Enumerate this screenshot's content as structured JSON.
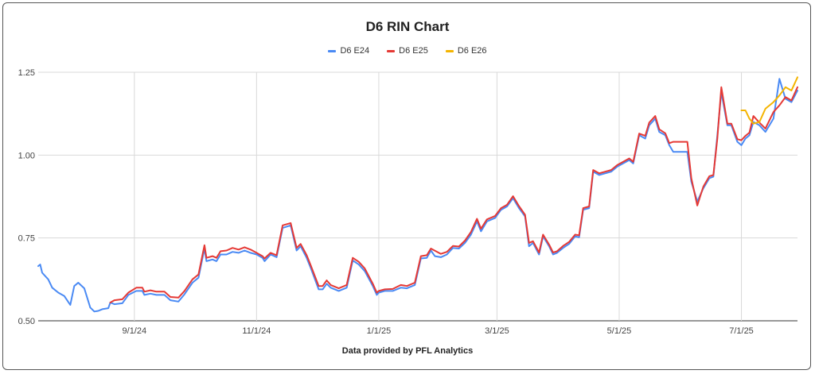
{
  "chart_data": {
    "type": "line",
    "title": "D6 RIN Chart",
    "footer": "Data provided by PFL Analytics",
    "xlabel": "",
    "ylabel": "",
    "ylim": [
      0.5,
      1.25
    ],
    "yticks": [
      "0.50",
      "0.75",
      "1.00",
      "1.25"
    ],
    "xticks": [
      {
        "label": "9/1/24",
        "date": "2024-09-01"
      },
      {
        "label": "11/1/24",
        "date": "2024-11-01"
      },
      {
        "label": "1/1/25",
        "date": "2025-01-01"
      },
      {
        "label": "3/1/25",
        "date": "2025-03-01"
      },
      {
        "label": "5/1/25",
        "date": "2025-05-01"
      },
      {
        "label": "7/1/25",
        "date": "2025-07-01"
      }
    ],
    "xrange": [
      "2024-07-15",
      "2025-07-29"
    ],
    "grid": true,
    "legend_position": "top",
    "series": [
      {
        "name": "D6 E24",
        "color": "#4a8af4",
        "points": [
          [
            "2024-07-15",
            0.665
          ],
          [
            "2024-07-16",
            0.67
          ],
          [
            "2024-07-17",
            0.645
          ],
          [
            "2024-07-20",
            0.625
          ],
          [
            "2024-07-22",
            0.6
          ],
          [
            "2024-07-25",
            0.585
          ],
          [
            "2024-07-28",
            0.575
          ],
          [
            "2024-07-31",
            0.548
          ],
          [
            "2024-08-02",
            0.605
          ],
          [
            "2024-08-04",
            0.615
          ],
          [
            "2024-08-07",
            0.598
          ],
          [
            "2024-08-10",
            0.54
          ],
          [
            "2024-08-12",
            0.528
          ],
          [
            "2024-08-14",
            0.53
          ],
          [
            "2024-08-16",
            0.535
          ],
          [
            "2024-08-19",
            0.538
          ],
          [
            "2024-08-20",
            0.555
          ],
          [
            "2024-08-22",
            0.55
          ],
          [
            "2024-08-26",
            0.553
          ],
          [
            "2024-08-29",
            0.578
          ],
          [
            "2024-09-02",
            0.59
          ],
          [
            "2024-09-05",
            0.59
          ],
          [
            "2024-09-06",
            0.578
          ],
          [
            "2024-09-09",
            0.582
          ],
          [
            "2024-09-12",
            0.578
          ],
          [
            "2024-09-16",
            0.578
          ],
          [
            "2024-09-19",
            0.562
          ],
          [
            "2024-09-23",
            0.558
          ],
          [
            "2024-09-26",
            0.58
          ],
          [
            "2024-09-30",
            0.615
          ],
          [
            "2024-10-03",
            0.63
          ],
          [
            "2024-10-06",
            0.718
          ],
          [
            "2024-10-07",
            0.68
          ],
          [
            "2024-10-10",
            0.685
          ],
          [
            "2024-10-12",
            0.68
          ],
          [
            "2024-10-14",
            0.7
          ],
          [
            "2024-10-17",
            0.7
          ],
          [
            "2024-10-20",
            0.708
          ],
          [
            "2024-10-23",
            0.705
          ],
          [
            "2024-10-26",
            0.712
          ],
          [
            "2024-10-29",
            0.705
          ],
          [
            "2024-11-01",
            0.7
          ],
          [
            "2024-11-04",
            0.69
          ],
          [
            "2024-11-05",
            0.68
          ],
          [
            "2024-11-08",
            0.7
          ],
          [
            "2024-11-11",
            0.692
          ],
          [
            "2024-11-14",
            0.78
          ],
          [
            "2024-11-18",
            0.788
          ],
          [
            "2024-11-21",
            0.712
          ],
          [
            "2024-11-23",
            0.725
          ],
          [
            "2024-11-26",
            0.69
          ],
          [
            "2024-11-28",
            0.66
          ],
          [
            "2024-12-02",
            0.595
          ],
          [
            "2024-12-04",
            0.595
          ],
          [
            "2024-12-06",
            0.612
          ],
          [
            "2024-12-08",
            0.6
          ],
          [
            "2024-12-12",
            0.59
          ],
          [
            "2024-12-16",
            0.6
          ],
          [
            "2024-12-19",
            0.682
          ],
          [
            "2024-12-22",
            0.67
          ],
          [
            "2024-12-25",
            0.65
          ],
          [
            "2024-12-29",
            0.605
          ],
          [
            "2024-12-31",
            0.578
          ],
          [
            "2025-01-01",
            0.585
          ],
          [
            "2025-01-04",
            0.59
          ],
          [
            "2025-01-08",
            0.59
          ],
          [
            "2025-01-12",
            0.6
          ],
          [
            "2025-01-15",
            0.598
          ],
          [
            "2025-01-19",
            0.608
          ],
          [
            "2025-01-22",
            0.688
          ],
          [
            "2025-01-25",
            0.69
          ],
          [
            "2025-01-27",
            0.712
          ],
          [
            "2025-01-29",
            0.695
          ],
          [
            "2025-02-01",
            0.692
          ],
          [
            "2025-02-04",
            0.7
          ],
          [
            "2025-02-07",
            0.72
          ],
          [
            "2025-02-10",
            0.718
          ],
          [
            "2025-02-13",
            0.735
          ],
          [
            "2025-02-16",
            0.76
          ],
          [
            "2025-02-19",
            0.8
          ],
          [
            "2025-02-21",
            0.77
          ],
          [
            "2025-02-24",
            0.8
          ],
          [
            "2025-02-28",
            0.81
          ],
          [
            "2025-03-03",
            0.835
          ],
          [
            "2025-03-06",
            0.845
          ],
          [
            "2025-03-09",
            0.87
          ],
          [
            "2025-03-12",
            0.84
          ],
          [
            "2025-03-15",
            0.815
          ],
          [
            "2025-03-17",
            0.725
          ],
          [
            "2025-03-19",
            0.735
          ],
          [
            "2025-03-22",
            0.7
          ],
          [
            "2025-03-24",
            0.755
          ],
          [
            "2025-03-27",
            0.725
          ],
          [
            "2025-03-29",
            0.7
          ],
          [
            "2025-03-31",
            0.705
          ],
          [
            "2025-04-03",
            0.72
          ],
          [
            "2025-04-06",
            0.732
          ],
          [
            "2025-04-09",
            0.755
          ],
          [
            "2025-04-11",
            0.752
          ],
          [
            "2025-04-13",
            0.835
          ],
          [
            "2025-04-16",
            0.84
          ],
          [
            "2025-04-18",
            0.95
          ],
          [
            "2025-04-21",
            0.94
          ],
          [
            "2025-04-24",
            0.945
          ],
          [
            "2025-04-27",
            0.95
          ],
          [
            "2025-04-30",
            0.965
          ],
          [
            "2025-05-03",
            0.975
          ],
          [
            "2025-05-06",
            0.985
          ],
          [
            "2025-05-08",
            0.975
          ],
          [
            "2025-05-11",
            1.06
          ],
          [
            "2025-05-14",
            1.05
          ],
          [
            "2025-05-16",
            1.09
          ],
          [
            "2025-05-19",
            1.11
          ],
          [
            "2025-05-21",
            1.07
          ],
          [
            "2025-05-24",
            1.06
          ],
          [
            "2025-05-26",
            1.03
          ],
          [
            "2025-05-28",
            1.01
          ],
          [
            "2025-05-31",
            1.01
          ],
          [
            "2025-06-04",
            1.01
          ],
          [
            "2025-06-06",
            0.92
          ],
          [
            "2025-06-09",
            0.86
          ],
          [
            "2025-06-12",
            0.9
          ],
          [
            "2025-06-15",
            0.93
          ],
          [
            "2025-06-17",
            0.935
          ],
          [
            "2025-06-19",
            1.06
          ],
          [
            "2025-06-21",
            1.19
          ],
          [
            "2025-06-24",
            1.09
          ],
          [
            "2025-06-26",
            1.09
          ],
          [
            "2025-06-29",
            1.04
          ],
          [
            "2025-07-01",
            1.03
          ],
          [
            "2025-07-03",
            1.05
          ],
          [
            "2025-07-05",
            1.06
          ],
          [
            "2025-07-07",
            1.1
          ],
          [
            "2025-07-10",
            1.09
          ],
          [
            "2025-07-13",
            1.07
          ],
          [
            "2025-07-17",
            1.11
          ],
          [
            "2025-07-20",
            1.23
          ],
          [
            "2025-07-23",
            1.17
          ],
          [
            "2025-07-26",
            1.16
          ],
          [
            "2025-07-29",
            1.195
          ]
        ]
      },
      {
        "name": "D6 E25",
        "color": "#e53935",
        "points": [
          [
            "2024-08-20",
            0.555
          ],
          [
            "2024-08-22",
            0.562
          ],
          [
            "2024-08-26",
            0.565
          ],
          [
            "2024-08-29",
            0.585
          ],
          [
            "2024-09-02",
            0.6
          ],
          [
            "2024-09-05",
            0.6
          ],
          [
            "2024-09-06",
            0.588
          ],
          [
            "2024-09-09",
            0.592
          ],
          [
            "2024-09-12",
            0.588
          ],
          [
            "2024-09-16",
            0.588
          ],
          [
            "2024-09-19",
            0.572
          ],
          [
            "2024-09-23",
            0.57
          ],
          [
            "2024-09-26",
            0.59
          ],
          [
            "2024-09-30",
            0.625
          ],
          [
            "2024-10-03",
            0.64
          ],
          [
            "2024-10-06",
            0.728
          ],
          [
            "2024-10-07",
            0.69
          ],
          [
            "2024-10-10",
            0.695
          ],
          [
            "2024-10-12",
            0.69
          ],
          [
            "2024-10-14",
            0.71
          ],
          [
            "2024-10-17",
            0.712
          ],
          [
            "2024-10-20",
            0.72
          ],
          [
            "2024-10-23",
            0.715
          ],
          [
            "2024-10-26",
            0.722
          ],
          [
            "2024-10-29",
            0.715
          ],
          [
            "2024-11-01",
            0.705
          ],
          [
            "2024-11-04",
            0.695
          ],
          [
            "2024-11-05",
            0.688
          ],
          [
            "2024-11-08",
            0.705
          ],
          [
            "2024-11-11",
            0.698
          ],
          [
            "2024-11-14",
            0.788
          ],
          [
            "2024-11-18",
            0.795
          ],
          [
            "2024-11-21",
            0.72
          ],
          [
            "2024-11-23",
            0.732
          ],
          [
            "2024-11-26",
            0.698
          ],
          [
            "2024-11-28",
            0.668
          ],
          [
            "2024-12-02",
            0.605
          ],
          [
            "2024-12-04",
            0.605
          ],
          [
            "2024-12-06",
            0.622
          ],
          [
            "2024-12-08",
            0.608
          ],
          [
            "2024-12-12",
            0.598
          ],
          [
            "2024-12-16",
            0.608
          ],
          [
            "2024-12-19",
            0.69
          ],
          [
            "2024-12-22",
            0.678
          ],
          [
            "2024-12-25",
            0.658
          ],
          [
            "2024-12-29",
            0.612
          ],
          [
            "2024-12-31",
            0.585
          ],
          [
            "2025-01-01",
            0.59
          ],
          [
            "2025-01-04",
            0.595
          ],
          [
            "2025-01-08",
            0.596
          ],
          [
            "2025-01-12",
            0.608
          ],
          [
            "2025-01-15",
            0.605
          ],
          [
            "2025-01-19",
            0.615
          ],
          [
            "2025-01-22",
            0.695
          ],
          [
            "2025-01-25",
            0.698
          ],
          [
            "2025-01-27",
            0.718
          ],
          [
            "2025-02-01",
            0.702
          ],
          [
            "2025-02-04",
            0.708
          ],
          [
            "2025-02-07",
            0.726
          ],
          [
            "2025-02-10",
            0.724
          ],
          [
            "2025-02-13",
            0.742
          ],
          [
            "2025-02-16",
            0.768
          ],
          [
            "2025-02-19",
            0.808
          ],
          [
            "2025-02-21",
            0.778
          ],
          [
            "2025-02-24",
            0.806
          ],
          [
            "2025-02-28",
            0.816
          ],
          [
            "2025-03-03",
            0.84
          ],
          [
            "2025-03-06",
            0.85
          ],
          [
            "2025-03-09",
            0.876
          ],
          [
            "2025-03-12",
            0.846
          ],
          [
            "2025-03-15",
            0.82
          ],
          [
            "2025-03-17",
            0.735
          ],
          [
            "2025-03-19",
            0.74
          ],
          [
            "2025-03-22",
            0.706
          ],
          [
            "2025-03-24",
            0.76
          ],
          [
            "2025-03-27",
            0.73
          ],
          [
            "2025-03-29",
            0.706
          ],
          [
            "2025-03-31",
            0.71
          ],
          [
            "2025-04-03",
            0.726
          ],
          [
            "2025-04-06",
            0.738
          ],
          [
            "2025-04-09",
            0.76
          ],
          [
            "2025-04-11",
            0.758
          ],
          [
            "2025-04-13",
            0.84
          ],
          [
            "2025-04-16",
            0.845
          ],
          [
            "2025-04-18",
            0.955
          ],
          [
            "2025-04-21",
            0.945
          ],
          [
            "2025-04-24",
            0.95
          ],
          [
            "2025-04-27",
            0.955
          ],
          [
            "2025-04-30",
            0.97
          ],
          [
            "2025-05-03",
            0.98
          ],
          [
            "2025-05-06",
            0.99
          ],
          [
            "2025-05-08",
            0.98
          ],
          [
            "2025-05-11",
            1.065
          ],
          [
            "2025-05-14",
            1.058
          ],
          [
            "2025-05-16",
            1.098
          ],
          [
            "2025-05-19",
            1.118
          ],
          [
            "2025-05-21",
            1.078
          ],
          [
            "2025-05-24",
            1.066
          ],
          [
            "2025-05-26",
            1.036
          ],
          [
            "2025-05-28",
            1.04
          ],
          [
            "2025-05-31",
            1.04
          ],
          [
            "2025-06-04",
            1.04
          ],
          [
            "2025-06-06",
            0.93
          ],
          [
            "2025-06-09",
            0.848
          ],
          [
            "2025-06-12",
            0.905
          ],
          [
            "2025-06-15",
            0.936
          ],
          [
            "2025-06-17",
            0.94
          ],
          [
            "2025-06-19",
            1.05
          ],
          [
            "2025-06-21",
            1.205
          ],
          [
            "2025-06-24",
            1.095
          ],
          [
            "2025-06-26",
            1.095
          ],
          [
            "2025-06-29",
            1.048
          ],
          [
            "2025-07-01",
            1.045
          ],
          [
            "2025-07-03",
            1.058
          ],
          [
            "2025-07-05",
            1.068
          ],
          [
            "2025-07-07",
            1.118
          ],
          [
            "2025-07-10",
            1.098
          ],
          [
            "2025-07-13",
            1.08
          ],
          [
            "2025-07-17",
            1.13
          ],
          [
            "2025-07-20",
            1.15
          ],
          [
            "2025-07-23",
            1.175
          ],
          [
            "2025-07-26",
            1.165
          ],
          [
            "2025-07-29",
            1.205
          ]
        ]
      },
      {
        "name": "D6 E26",
        "color": "#f4b400",
        "points": [
          [
            "2025-07-01",
            1.135
          ],
          [
            "2025-07-03",
            1.135
          ],
          [
            "2025-07-05",
            1.11
          ],
          [
            "2025-07-07",
            1.095
          ],
          [
            "2025-07-10",
            1.1
          ],
          [
            "2025-07-13",
            1.14
          ],
          [
            "2025-07-17",
            1.16
          ],
          [
            "2025-07-20",
            1.18
          ],
          [
            "2025-07-23",
            1.205
          ],
          [
            "2025-07-26",
            1.195
          ],
          [
            "2025-07-29",
            1.235
          ]
        ]
      }
    ]
  }
}
